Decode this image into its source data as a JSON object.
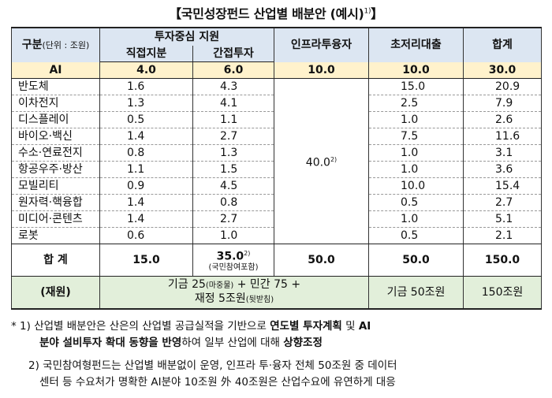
{
  "title": "【국민성장펀드 산업별 배분안 (예시)",
  "title_sup": "1)",
  "header": {
    "gubun": "구분",
    "gubun_unit": "(단위 : 조원)",
    "investment_group": "투자중심 지원",
    "direct": "직접지분",
    "indirect": "간접투자",
    "infra": "인프라투융자",
    "loan": "초저리대출",
    "total": "합계"
  },
  "ai_row": {
    "label": "AI",
    "direct": "4.0",
    "indirect": "6.0",
    "infra": "10.0",
    "loan": "10.0",
    "total": "30.0"
  },
  "rows": [
    {
      "label": "반도체",
      "direct": "1.6",
      "indirect": "4.3",
      "loan": "15.0",
      "total": "20.9"
    },
    {
      "label": "이차전지",
      "direct": "1.3",
      "indirect": "4.1",
      "loan": "2.5",
      "total": "7.9"
    },
    {
      "label": "디스플레이",
      "direct": "0.5",
      "indirect": "1.1",
      "loan": "1.0",
      "total": "2.6"
    },
    {
      "label": "바이오·백신",
      "direct": "1.4",
      "indirect": "2.7",
      "loan": "7.5",
      "total": "11.6"
    },
    {
      "label": "수소·연료전지",
      "direct": "0.8",
      "indirect": "1.3",
      "loan": "1.0",
      "total": "3.1"
    },
    {
      "label": "항공우주·방산",
      "direct": "1.1",
      "indirect": "1.5",
      "loan": "1.0",
      "total": "3.6"
    },
    {
      "label": "모빌리티",
      "direct": "0.9",
      "indirect": "4.5",
      "loan": "10.0",
      "total": "15.4"
    },
    {
      "label": "원자력·핵융합",
      "direct": "1.4",
      "indirect": "0.8",
      "loan": "0.5",
      "total": "2.7"
    },
    {
      "label": "미디어·콘텐츠",
      "direct": "1.4",
      "indirect": "2.7",
      "loan": "1.0",
      "total": "5.1"
    },
    {
      "label": "로봇",
      "direct": "0.6",
      "indirect": "1.0",
      "loan": "0.5",
      "total": "2.1"
    }
  ],
  "infra_merged": {
    "value": "40.0",
    "sup": "2)"
  },
  "total_row": {
    "label": "합 계",
    "direct": "15.0",
    "indirect": "35.0",
    "indirect_sup": "2)",
    "indirect_note": "(국민참여포함)",
    "infra": "50.0",
    "loan": "50.0",
    "total": "150.0"
  },
  "source_row": {
    "label": "(재원)",
    "invest_line1_a": "기금 25",
    "invest_line1_small": "(마중물)",
    "invest_line1_b": " + 민간 75 +",
    "invest_line2_a": "재정 5조원",
    "invest_line2_small": "(뒷받침)",
    "loan": "기금 50조원",
    "total": "150조원"
  },
  "notes": {
    "n1_prefix": "* 1) 산업별 배분안은 산은의 산업별 공급실적을 기반으로",
    "n1_bold1": "연도별 투자계획",
    "n1_mid": "및",
    "n1_bold2": "AI",
    "n1_line2_bold": "분야 설비투자 확대 동향을 반영",
    "n1_line2_mid": "하여 일부 산업에 대해",
    "n1_line2_bold2": "상향조정",
    "n2_line1": "2) 국민참여형펀드는 산업별 배분없이 운영, 인프라 투·융자 전체 50조원 중 데이터",
    "n2_line2": "센터 등 수요처가 명확한 AI분야 10조원 外 40조원은 산업수요에 유연하게 대응"
  }
}
